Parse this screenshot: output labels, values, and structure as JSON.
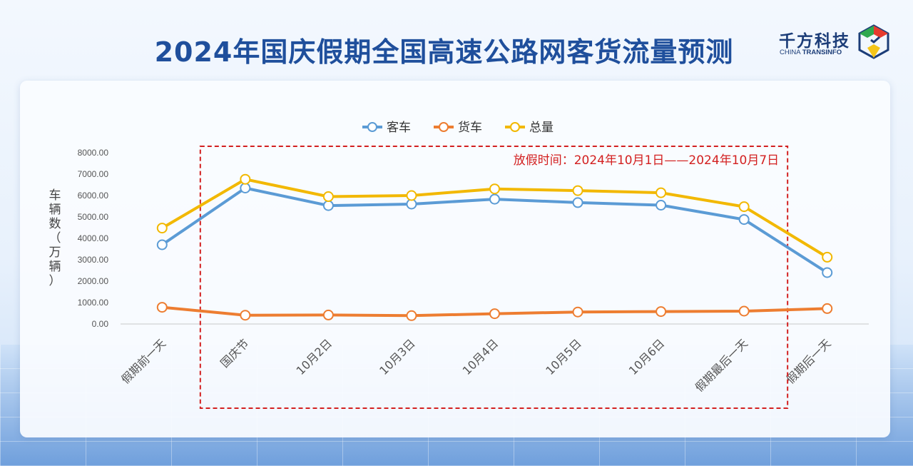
{
  "title": "2024年国庆假期全国高速公路网客货流量预测",
  "logo": {
    "name_cn": "千方科技",
    "name_en_prefix": "CHINA ",
    "name_en_bold": "TRANSINFO",
    "mark_icon": "transinfo-cube-logo-icon",
    "colors": [
      "#e63b2e",
      "#2fa84f",
      "#f5c518",
      "#1c3d78"
    ]
  },
  "chart_data": {
    "type": "line",
    "title": "",
    "xlabel": "",
    "ylabel": "车辆数（万辆）",
    "ylim": [
      0,
      8000
    ],
    "yticks": [
      "0.00",
      "1000.00",
      "2000.00",
      "3000.00",
      "4000.00",
      "5000.00",
      "6000.00",
      "7000.00",
      "8000.00"
    ],
    "categories": [
      "假期前一天",
      "国庆节",
      "10月2日",
      "10月3日",
      "10月4日",
      "10月5日",
      "10月6日",
      "假期最后一天",
      "假期后一天"
    ],
    "series": [
      {
        "name": "客车",
        "color": "#5b9bd5",
        "values": [
          3700,
          6350,
          5530,
          5600,
          5830,
          5670,
          5550,
          4880,
          2400
        ]
      },
      {
        "name": "货车",
        "color": "#ed7d31",
        "values": [
          780,
          410,
          420,
          390,
          480,
          560,
          580,
          600,
          720
        ]
      },
      {
        "name": "总量",
        "color": "#f2b800",
        "values": [
          4480,
          6760,
          5950,
          6000,
          6310,
          6230,
          6130,
          5480,
          3120
        ]
      }
    ],
    "grid": false,
    "legend_position": "top-center",
    "annotation": {
      "text": "放假时间：2024年10月1日——2024年10月7日",
      "color": "#d32020",
      "spans_categories": [
        "国庆节",
        "假期最后一天"
      ]
    }
  }
}
